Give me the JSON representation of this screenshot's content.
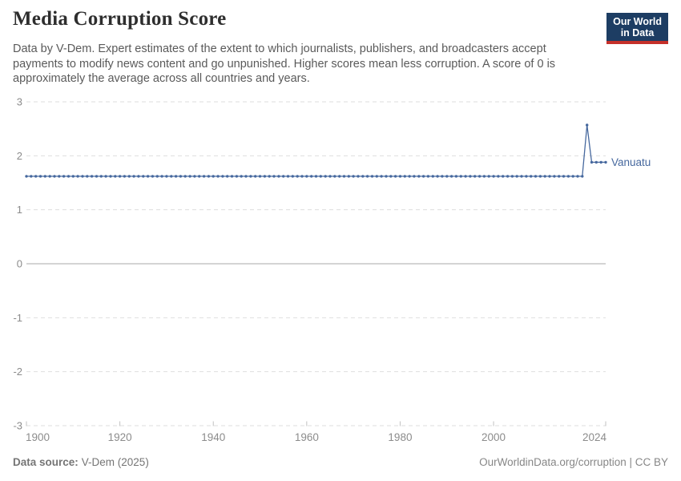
{
  "header": {
    "title": "Media Corruption Score",
    "subtitle": "Data by V-Dem. Expert estimates of the extent to which journalists, publishers, and broadcasters accept payments to modify news content and go unpunished. Higher scores mean less corruption. A score of 0 is approximately the average across all countries and years.",
    "logo": {
      "line1": "Our World",
      "line2": "in Data",
      "bg_color": "#1d3d63",
      "accent_color": "#c5302a"
    }
  },
  "chart_data": {
    "type": "line",
    "title": "Media Corruption Score",
    "xlabel": "",
    "ylabel": "",
    "x": {
      "min": 1900,
      "max": 2024,
      "ticks": [
        1900,
        1920,
        1940,
        1960,
        1980,
        2000,
        2024
      ]
    },
    "y": {
      "min": -3,
      "max": 3,
      "ticks": [
        3,
        2,
        1,
        0,
        -1,
        -2,
        -3
      ]
    },
    "grid": {
      "horizontal_dashed": true,
      "zero_line_solid": true
    },
    "legend_position": "end-of-line-label",
    "series": [
      {
        "name": "Vanuatu",
        "color": "#46689e",
        "point_interval_years": 1,
        "segments": [
          {
            "from": 1900,
            "to": 2019,
            "value": 1.62
          },
          {
            "from": 2020,
            "to": 2020,
            "value": 2.57
          },
          {
            "from": 2021,
            "to": 2024,
            "value": 1.88
          }
        ]
      }
    ],
    "colors": {
      "gridline": "#dedede",
      "zero_line": "#a9a9a9",
      "axis_label": "#8c8c8c",
      "tick_mark": "#c2c2c2"
    }
  },
  "footer": {
    "data_source_label": "Data source:",
    "data_source_value": "V-Dem (2025)",
    "right_text": "OurWorldinData.org/corruption | CC BY"
  }
}
